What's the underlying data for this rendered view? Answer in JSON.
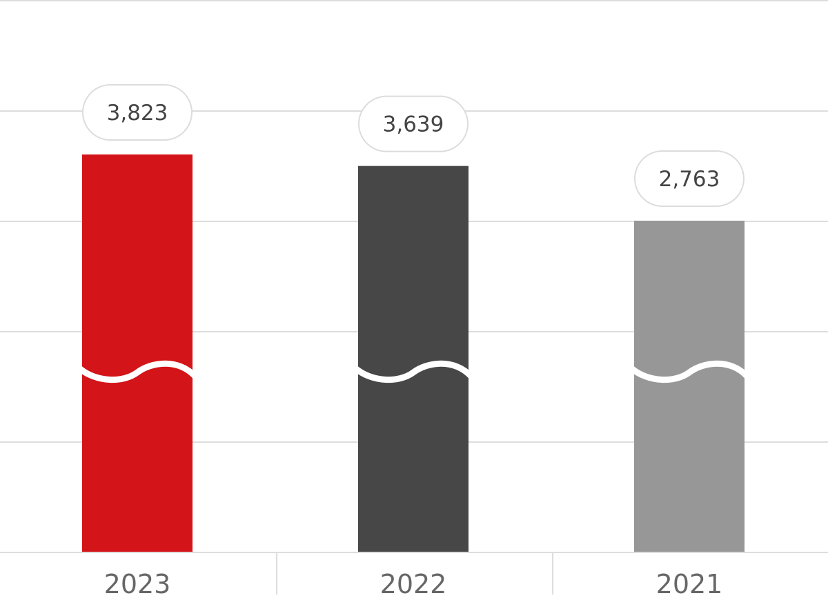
{
  "chart_data": {
    "type": "bar",
    "categories": [
      "2023",
      "2022",
      "2021"
    ],
    "values": [
      3823,
      3639,
      2763
    ],
    "value_labels": [
      "3,823",
      "3,639",
      "2,763"
    ],
    "colors": [
      "#d31418",
      "#474747",
      "#979797"
    ],
    "axis_break": true,
    "grid": true,
    "legend": "none"
  }
}
